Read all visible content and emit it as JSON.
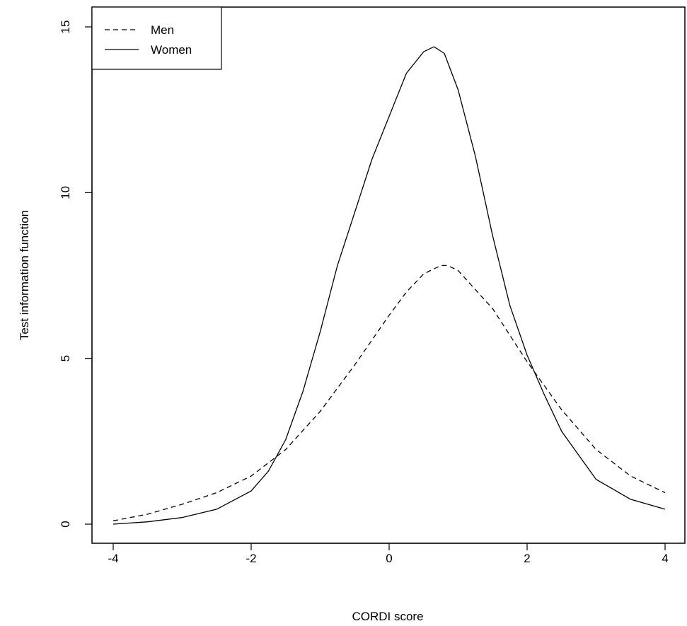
{
  "chart_data": {
    "type": "line",
    "title": "",
    "xlabel": "CORDI score",
    "ylabel": "Test information function",
    "xlim": [
      -4,
      4
    ],
    "ylim": [
      0,
      15
    ],
    "x_ticks": [
      -4,
      -2,
      0,
      2,
      4
    ],
    "y_ticks": [
      0,
      5,
      10,
      15
    ],
    "x_tick_labels": [
      "-4",
      "-2",
      "0",
      "2",
      "4"
    ],
    "y_tick_labels": [
      "0",
      "5",
      "10",
      "15"
    ],
    "grid": false,
    "legend_position": "top-left",
    "series": [
      {
        "name": "Men",
        "style": "dashed",
        "color": "#000000",
        "x": [
          -4,
          -3.5,
          -3,
          -2.5,
          -2,
          -1.5,
          -1,
          -0.5,
          0,
          0.25,
          0.5,
          0.75,
          0.85,
          1,
          1.5,
          2,
          2.5,
          3,
          3.5,
          4
        ],
        "y": [
          0.1,
          0.3,
          0.6,
          0.95,
          1.45,
          2.25,
          3.4,
          4.8,
          6.3,
          7.0,
          7.55,
          7.8,
          7.8,
          7.65,
          6.5,
          4.9,
          3.45,
          2.25,
          1.45,
          0.95
        ]
      },
      {
        "name": "Women",
        "style": "solid",
        "color": "#000000",
        "x": [
          -4,
          -3.5,
          -3,
          -2.5,
          -2,
          -1.75,
          -1.5,
          -1.25,
          -1,
          -0.75,
          -0.5,
          -0.25,
          0,
          0.25,
          0.5,
          0.65,
          0.8,
          1,
          1.25,
          1.5,
          1.75,
          2,
          2.25,
          2.5,
          3,
          3.5,
          4
        ],
        "y": [
          0.0,
          0.07,
          0.2,
          0.45,
          1.0,
          1.6,
          2.55,
          4.0,
          5.8,
          7.8,
          9.4,
          11.0,
          12.3,
          13.6,
          14.25,
          14.4,
          14.2,
          13.1,
          11.1,
          8.7,
          6.6,
          5.1,
          3.9,
          2.8,
          1.35,
          0.75,
          0.45
        ]
      }
    ]
  }
}
